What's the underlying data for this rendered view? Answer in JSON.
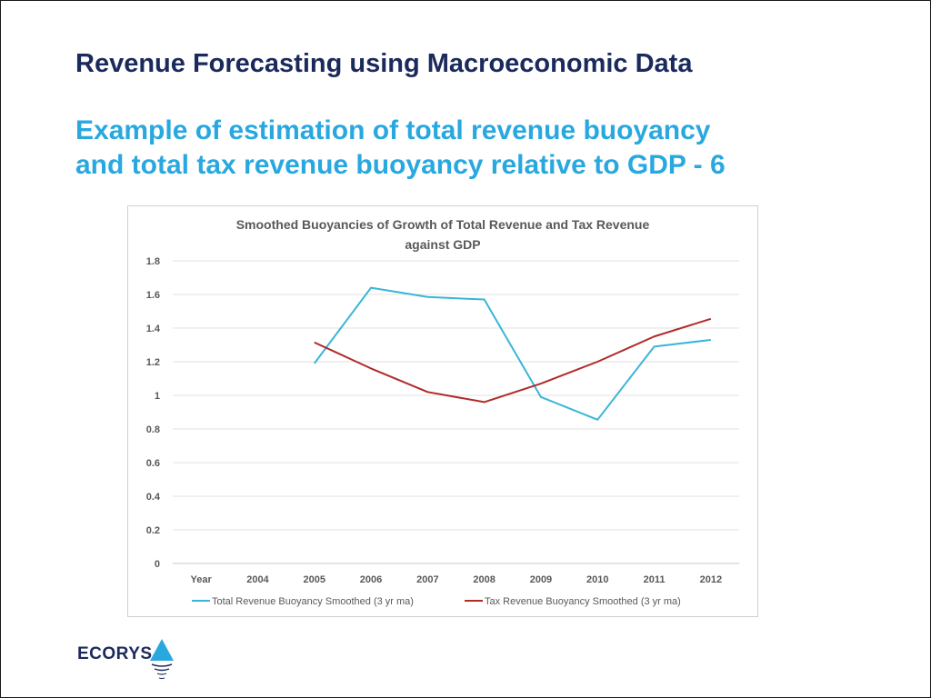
{
  "slide": {
    "title": "Revenue Forecasting using Macroeconomic Data",
    "subtitle_line1": "Example of estimation of total revenue buoyancy",
    "subtitle_line2": "and total tax revenue buoyancy relative to GDP - 6"
  },
  "logo": {
    "text": "ECORYS",
    "icon": "triangle-wave-icon",
    "color": "#1b2a5c",
    "accent": "#29a8e0"
  },
  "chart_data": {
    "type": "line",
    "title_line1": "Smoothed Buoyancies of Growth of Total Revenue and Tax Revenue",
    "title_line2": "against GDP",
    "categories": [
      "Year",
      "2004",
      "2005",
      "2006",
      "2007",
      "2008",
      "2009",
      "2010",
      "2011",
      "2012"
    ],
    "ylim": [
      0,
      1.8
    ],
    "yticks": [
      "0",
      "0.2",
      "0.4",
      "0.6",
      "0.8",
      "1",
      "1.2",
      "1.4",
      "1.6",
      "1.8"
    ],
    "grid": true,
    "legend_position": "bottom",
    "series": [
      {
        "name": "Total Revenue Buoyancy Smoothed (3 yr ma)",
        "color": "#3ab5d8",
        "values": [
          null,
          null,
          1.19,
          1.64,
          1.585,
          1.57,
          0.99,
          0.855,
          1.29,
          1.33
        ]
      },
      {
        "name": "Tax Revenue Buoyancy Smoothed (3 yr ma)",
        "color": "#b02a2a",
        "values": [
          null,
          null,
          1.315,
          1.16,
          1.02,
          0.96,
          1.07,
          1.2,
          1.35,
          1.455
        ]
      }
    ]
  }
}
